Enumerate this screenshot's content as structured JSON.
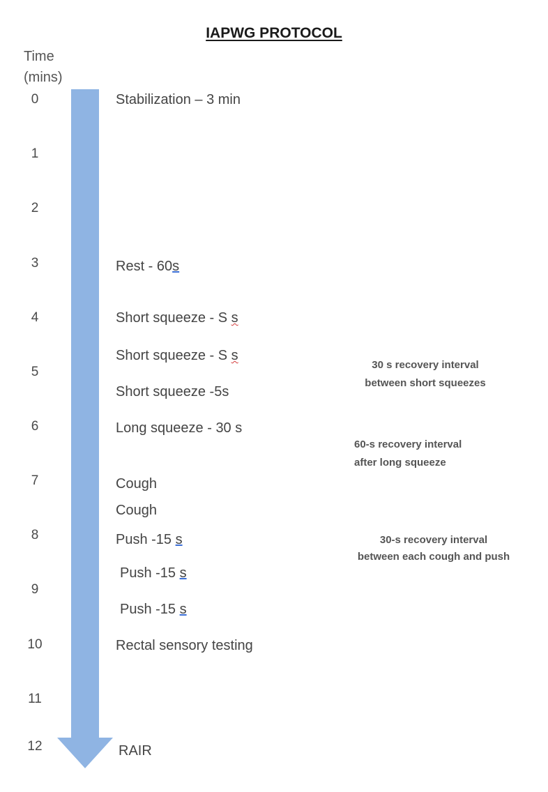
{
  "title": "IAPWG PROTOCOL",
  "time_axis": {
    "header_line1": "Time",
    "header_line2": "(mins)",
    "ticks": [
      "0",
      "1",
      "2",
      "3",
      "4",
      "5",
      "6",
      "7",
      "8",
      "9",
      "10",
      "11",
      "12"
    ]
  },
  "arrow": {
    "color": "#8fb4e3"
  },
  "steps": [
    {
      "text": "Stabilization – 3 min"
    },
    {
      "text": "Rest - 60",
      "unit": "s"
    },
    {
      "text": "Short squeeze - S ",
      "unit": "s"
    },
    {
      "text": "Short squeeze - S ",
      "unit": "s"
    },
    {
      "text": "Short squeeze -5s"
    },
    {
      "text": "Long squeeze - 30 s"
    },
    {
      "text": "Cough"
    },
    {
      "text": "Cough"
    },
    {
      "text": "Push -15 ",
      "unit": "s"
    },
    {
      "text": "Push -15 ",
      "unit": "s"
    },
    {
      "text": "Push -15 ",
      "unit": "s"
    },
    {
      "text": "Rectal sensory testing"
    },
    {
      "text": "RAIR"
    }
  ],
  "notes": [
    {
      "line1": "30 s recovery interval",
      "line2": "between short squeezes"
    },
    {
      "line1": "60-s recovery interval",
      "line2": "after long squeeze"
    },
    {
      "line1": "30-s recovery interval",
      "line2": "between each cough and push"
    }
  ]
}
